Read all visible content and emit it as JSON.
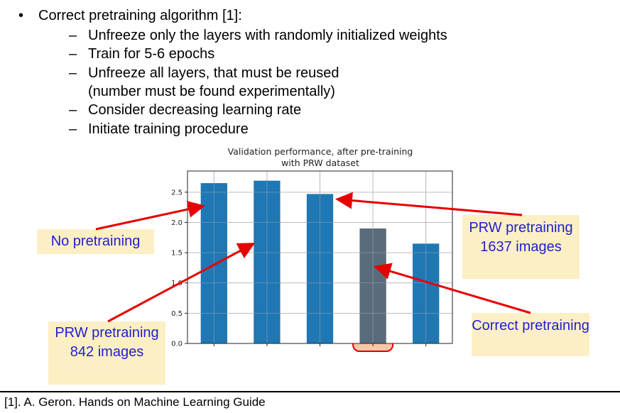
{
  "slide": {
    "bullet_symbol": "•",
    "dash_symbol": "–",
    "main_bullet": "Correct pretraining algorithm [1]:",
    "sub_bullets": [
      "Unfreeze only the layers with randomly initialized weights",
      "Train for 5-6 epochs",
      "Unfreeze all layers, that must be reused",
      "Consider decreasing learning rate",
      "Initiate training procedure"
    ],
    "sub_bullet_continuation": "(number must be found experimentally)"
  },
  "chart_data": {
    "type": "bar",
    "title_lines": [
      "Validation performance, after pre-training",
      "with PRW dataset"
    ],
    "categories": [
      "",
      "",
      "",
      "",
      ""
    ],
    "values": [
      2.65,
      2.69,
      2.47,
      1.9,
      1.65
    ],
    "ylim": [
      0,
      2.85
    ],
    "yticks": [
      "0.0",
      "0.5",
      "1.0",
      "1.5",
      "2.0",
      "2.5"
    ],
    "grid": true,
    "highlighted_index": 3,
    "colors": {
      "bar": "#1f77b4",
      "highlighted_bar": "#5a6b7b",
      "highlight_fill": "#f8c7a8",
      "highlight_border": "#e60000",
      "arrow": "#e60000"
    }
  },
  "callouts": {
    "no_pretraining": "No pretraining",
    "prw_1637": "PRW pretraining 1637 images",
    "prw_842": "PRW pretraining 842 images",
    "correct": "Correct pretraining"
  },
  "footer": "[1]. A. Geron. Hands on Machine Learning Guide"
}
